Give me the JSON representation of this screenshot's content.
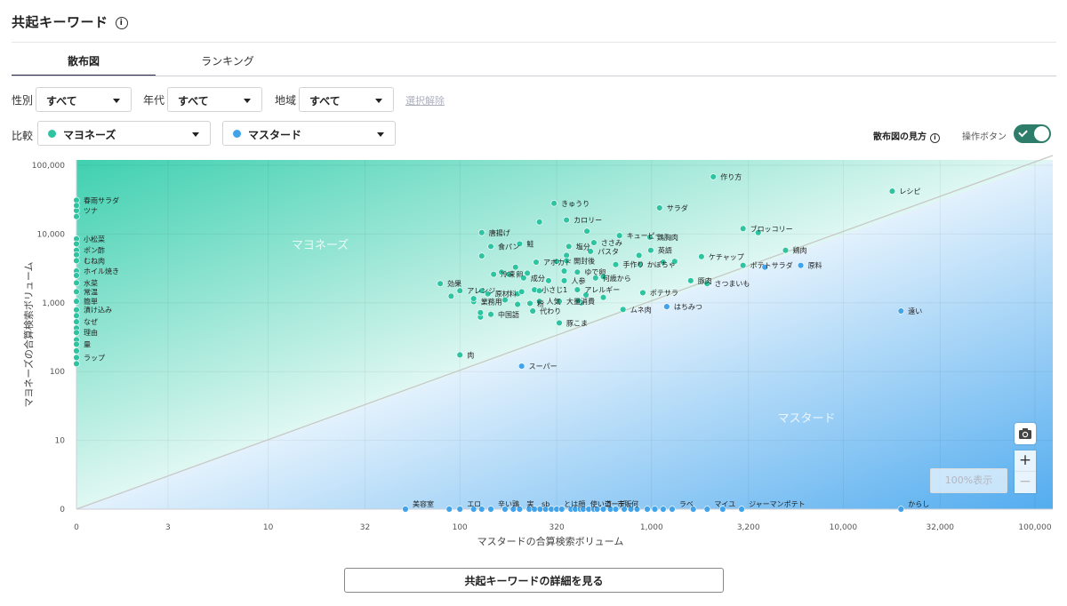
{
  "header": {
    "title": "共起キーワード",
    "info_icon": "info-icon"
  },
  "tabs": [
    {
      "label": "散布図",
      "active": true
    },
    {
      "label": "ランキング",
      "active": false
    }
  ],
  "filters": {
    "gender": {
      "label": "性別",
      "value": "すべて"
    },
    "age": {
      "label": "年代",
      "value": "すべて"
    },
    "region": {
      "label": "地域",
      "value": "すべて"
    },
    "clear": "選択解除"
  },
  "compare": {
    "label": "比較",
    "a": {
      "value": "マヨネーズ",
      "color": "#2ec4a2"
    },
    "b": {
      "value": "マスタード",
      "color": "#41a3ea"
    }
  },
  "chart_controls": {
    "howto": "散布図の見方",
    "operation": "操作ボタン",
    "toggle_on": true,
    "reset": "100%表示",
    "zoom_in": "+",
    "zoom_out": "−",
    "camera_icon": "camera-icon"
  },
  "detail_button": "共起キーワードの詳細を見る",
  "chart_data": {
    "type": "scatter",
    "xlabel": "マスタードの合算検索ボリューム",
    "ylabel": "マヨネーズの合算検索ボリューム",
    "xticks": [
      "0",
      "3",
      "10",
      "32",
      "100",
      "320",
      "1,000",
      "3,200",
      "10,000",
      "32,000",
      "100,000"
    ],
    "yticks": [
      "0",
      "10",
      "100",
      "1,000",
      "10,000",
      "100,000"
    ],
    "xlim": [
      0,
      100000
    ],
    "ylim": [
      0,
      100000
    ],
    "scale": "log",
    "region_labels": {
      "upper": "マヨネーズ",
      "lower": "マスタード"
    },
    "colors": {
      "mayo": "#2ec4a2",
      "mustard": "#41a3ea"
    },
    "points": [
      {
        "label": "作り方",
        "x": 2100,
        "y": 68000,
        "g": "mayo"
      },
      {
        "label": "レシピ",
        "x": 18000,
        "y": 42000,
        "g": "mayo"
      },
      {
        "label": "きゅうり",
        "x": 310,
        "y": 28000,
        "g": "mayo"
      },
      {
        "label": "サラダ",
        "x": 1100,
        "y": 24000,
        "g": "mayo"
      },
      {
        "label": "カロリー",
        "x": 360,
        "y": 16000,
        "g": "mayo"
      },
      {
        "label": "",
        "x": 260,
        "y": 15000,
        "g": "mayo"
      },
      {
        "label": "ブロッコリー",
        "x": 3000,
        "y": 12000,
        "g": "mayo"
      },
      {
        "label": "",
        "x": 3600,
        "y": 10500,
        "g": "mayo"
      },
      {
        "label": "唐揚げ",
        "x": 130,
        "y": 10500,
        "g": "mayo"
      },
      {
        "label": "",
        "x": 460,
        "y": 11000,
        "g": "mayo"
      },
      {
        "label": "ささみ",
        "x": 500,
        "y": 7500,
        "g": "mayo"
      },
      {
        "label": "キューピー",
        "x": 680,
        "y": 9500,
        "g": "mayo"
      },
      {
        "label": "鶏胸肉",
        "x": 980,
        "y": 9000,
        "g": "mayo"
      },
      {
        "label": "食パン",
        "x": 145,
        "y": 6600,
        "g": "mayo"
      },
      {
        "label": "鮭",
        "x": 205,
        "y": 7200,
        "g": "mayo"
      },
      {
        "label": "塩分",
        "x": 370,
        "y": 6600,
        "g": "mayo"
      },
      {
        "label": "パスタ",
        "x": 480,
        "y": 5600,
        "g": "mayo"
      },
      {
        "label": "英語",
        "x": 990,
        "y": 5800,
        "g": "mayo"
      },
      {
        "label": "鶏肉",
        "x": 5000,
        "y": 5800,
        "g": "mayo"
      },
      {
        "label": "ケチャップ",
        "x": 1820,
        "y": 4700,
        "g": "mayo"
      },
      {
        "label": "",
        "x": 130,
        "y": 4800,
        "g": "mayo"
      },
      {
        "label": "",
        "x": 360,
        "y": 4900,
        "g": "mayo"
      },
      {
        "label": "",
        "x": 860,
        "y": 4900,
        "g": "mayo"
      },
      {
        "label": "アボカド",
        "x": 250,
        "y": 3900,
        "g": "mayo"
      },
      {
        "label": "開封後",
        "x": 360,
        "y": 4100,
        "g": "mayo"
      },
      {
        "label": "",
        "x": 320,
        "y": 4000,
        "g": "mayo"
      },
      {
        "label": "手作り",
        "x": 650,
        "y": 3600,
        "g": "mayo"
      },
      {
        "label": "かぼちゃ",
        "x": 870,
        "y": 3600,
        "g": "mayo"
      },
      {
        "label": "",
        "x": 1150,
        "y": 3900,
        "g": "mayo"
      },
      {
        "label": "",
        "x": 1320,
        "y": 4000,
        "g": "mayo"
      },
      {
        "label": "ポテトサラダ",
        "x": 3000,
        "y": 3500,
        "g": "mayo"
      },
      {
        "label": "",
        "x": 3900,
        "y": 3300,
        "g": "mustard"
      },
      {
        "label": "原料",
        "x": 6000,
        "y": 3500,
        "g": "mustard"
      },
      {
        "label": "",
        "x": 195,
        "y": 3300,
        "g": "mayo"
      },
      {
        "label": "",
        "x": 165,
        "y": 2800,
        "g": "mayo"
      },
      {
        "label": "ゆで卵",
        "x": 410,
        "y": 2800,
        "g": "mayo"
      },
      {
        "label": "",
        "x": 350,
        "y": 2900,
        "g": "mayo"
      },
      {
        "label": "冷凍",
        "x": 150,
        "y": 2600,
        "g": "mayo"
      },
      {
        "label": "卵",
        "x": 180,
        "y": 2600,
        "g": "mayo"
      },
      {
        "label": "",
        "x": 225,
        "y": 2700,
        "g": "mayo"
      },
      {
        "label": "何歳から",
        "x": 510,
        "y": 2300,
        "g": "mayo"
      },
      {
        "label": "",
        "x": 560,
        "y": 2400,
        "g": "mayo"
      },
      {
        "label": "成分",
        "x": 215,
        "y": 2300,
        "g": "mayo"
      },
      {
        "label": "人参",
        "x": 350,
        "y": 2100,
        "g": "mayo"
      },
      {
        "label": "",
        "x": 290,
        "y": 2100,
        "g": "mayo"
      },
      {
        "label": "豚肉",
        "x": 1600,
        "y": 2100,
        "g": "mayo"
      },
      {
        "label": "さつまいも",
        "x": 1950,
        "y": 1900,
        "g": "mayo"
      },
      {
        "label": "効果",
        "x": 79,
        "y": 1900,
        "g": "mayo"
      },
      {
        "label": "アレンジ",
        "x": 100,
        "y": 1500,
        "g": "mayo"
      },
      {
        "label": "小さじ1",
        "x": 245,
        "y": 1550,
        "g": "mayo"
      },
      {
        "label": "原材料",
        "x": 140,
        "y": 1350,
        "g": "mayo"
      },
      {
        "label": "",
        "x": 130,
        "y": 1500,
        "g": "mayo"
      },
      {
        "label": "",
        "x": 200,
        "y": 1350,
        "g": "mayo"
      },
      {
        "label": "",
        "x": 210,
        "y": 1450,
        "g": "mayo"
      },
      {
        "label": "",
        "x": 260,
        "y": 1500,
        "g": "mayo"
      },
      {
        "label": "アレルギー",
        "x": 410,
        "y": 1550,
        "g": "mayo"
      },
      {
        "label": "",
        "x": 455,
        "y": 1300,
        "g": "mayo"
      },
      {
        "label": "",
        "x": 560,
        "y": 1200,
        "g": "mayo"
      },
      {
        "label": "ポテサラ",
        "x": 900,
        "y": 1400,
        "g": "mayo"
      },
      {
        "label": "",
        "x": 90,
        "y": 1250,
        "g": "mayo"
      },
      {
        "label": "業務用",
        "x": 118,
        "y": 1040,
        "g": "mayo"
      },
      {
        "label": "人気",
        "x": 260,
        "y": 1050,
        "g": "mayo"
      },
      {
        "label": "大量消費",
        "x": 330,
        "y": 1050,
        "g": "mayo"
      },
      {
        "label": "",
        "x": 118,
        "y": 1150,
        "g": "mayo"
      },
      {
        "label": "",
        "x": 172,
        "y": 1100,
        "g": "mayo"
      },
      {
        "label": "",
        "x": 430,
        "y": 1000,
        "g": "mayo"
      },
      {
        "label": "",
        "x": 415,
        "y": 1070,
        "g": "mayo"
      },
      {
        "label": "粉",
        "x": 232,
        "y": 980,
        "g": "mayo"
      },
      {
        "label": "",
        "x": 200,
        "y": 950,
        "g": "mayo"
      },
      {
        "label": "代わり",
        "x": 240,
        "y": 760,
        "g": "mayo"
      },
      {
        "label": "中国語",
        "x": 145,
        "y": 680,
        "g": "mayo"
      },
      {
        "label": "",
        "x": 128,
        "y": 620,
        "g": "mayo"
      },
      {
        "label": "",
        "x": 128,
        "y": 720,
        "g": "mayo"
      },
      {
        "label": "ムネ肉",
        "x": 710,
        "y": 800,
        "g": "mayo"
      },
      {
        "label": "はちみつ",
        "x": 1200,
        "y": 880,
        "g": "mustard"
      },
      {
        "label": "遠い",
        "x": 20000,
        "y": 760,
        "g": "mustard"
      },
      {
        "label": "豚こま",
        "x": 330,
        "y": 510,
        "g": "mayo"
      },
      {
        "label": "肉",
        "x": 100,
        "y": 175,
        "g": "mayo"
      },
      {
        "label": "スーパー",
        "x": 210,
        "y": 120,
        "g": "mustard"
      },
      {
        "label": "春雨サラダ",
        "x": 0,
        "y": 31000,
        "g": "mayo"
      },
      {
        "label": "ツナ",
        "x": 0,
        "y": 22000,
        "g": "mayo"
      },
      {
        "label": "",
        "x": 0,
        "y": 26000,
        "g": "mayo"
      },
      {
        "label": "",
        "x": 0,
        "y": 18000,
        "g": "mayo"
      },
      {
        "label": "小松菜",
        "x": 0,
        "y": 8500,
        "g": "mayo"
      },
      {
        "label": "",
        "x": 0,
        "y": 7200,
        "g": "mayo"
      },
      {
        "label": "ポン酢",
        "x": 0,
        "y": 5800,
        "g": "mayo"
      },
      {
        "label": "",
        "x": 0,
        "y": 5000,
        "g": "mayo"
      },
      {
        "label": "むね肉",
        "x": 0,
        "y": 4100,
        "g": "mayo"
      },
      {
        "label": "ホイル焼き",
        "x": 0,
        "y": 2900,
        "g": "mayo"
      },
      {
        "label": "",
        "x": 0,
        "y": 2500,
        "g": "mayo"
      },
      {
        "label": "水菜",
        "x": 0,
        "y": 1950,
        "g": "mayo"
      },
      {
        "label": "常温",
        "x": 0,
        "y": 1450,
        "g": "mayo"
      },
      {
        "label": "簡単",
        "x": 0,
        "y": 1050,
        "g": "mayo"
      },
      {
        "label": "漬け込み",
        "x": 0,
        "y": 790,
        "g": "mayo"
      },
      {
        "label": "",
        "x": 0,
        "y": 650,
        "g": "mayo"
      },
      {
        "label": "なぜ",
        "x": 0,
        "y": 530,
        "g": "mayo"
      },
      {
        "label": "",
        "x": 0,
        "y": 430,
        "g": "mayo"
      },
      {
        "label": "理由",
        "x": 0,
        "y": 370,
        "g": "mayo"
      },
      {
        "label": "",
        "x": 0,
        "y": 290,
        "g": "mayo"
      },
      {
        "label": "量",
        "x": 0,
        "y": 250,
        "g": "mayo"
      },
      {
        "label": "",
        "x": 0,
        "y": 200,
        "g": "mayo"
      },
      {
        "label": "ラップ",
        "x": 0,
        "y": 160,
        "g": "mayo"
      },
      {
        "label": "",
        "x": 0,
        "y": 130,
        "g": "mayo"
      },
      {
        "label": "美容室",
        "x": 52,
        "y": 0,
        "g": "mustard"
      },
      {
        "label": "エロ",
        "x": 100,
        "y": 0,
        "g": "mustard"
      },
      {
        "label": "",
        "x": 88,
        "y": 0,
        "g": "mustard"
      },
      {
        "label": "",
        "x": 118,
        "y": 0,
        "g": "mustard"
      },
      {
        "label": "辛い",
        "x": 145,
        "y": 0,
        "g": "mustard"
      },
      {
        "label": "",
        "x": 130,
        "y": 0,
        "g": "mustard"
      },
      {
        "label": "鶏",
        "x": 172,
        "y": 0,
        "g": "mustard"
      },
      {
        "label": "実",
        "x": 205,
        "y": 0,
        "g": "mustard"
      },
      {
        "label": "",
        "x": 190,
        "y": 0,
        "g": "mustard"
      },
      {
        "label": "",
        "x": 230,
        "y": 0,
        "g": "mustard"
      },
      {
        "label": "sb",
        "x": 245,
        "y": 0,
        "g": "mustard"
      },
      {
        "label": "",
        "x": 262,
        "y": 0,
        "g": "mustard"
      },
      {
        "label": "",
        "x": 280,
        "y": 0,
        "g": "mustard"
      },
      {
        "label": "",
        "x": 300,
        "y": 0,
        "g": "mustard"
      },
      {
        "label": "とは",
        "x": 320,
        "y": 0,
        "g": "mustard"
      },
      {
        "label": "",
        "x": 340,
        "y": 0,
        "g": "mustard"
      },
      {
        "label": "顔",
        "x": 380,
        "y": 0,
        "g": "mustard"
      },
      {
        "label": "",
        "x": 400,
        "y": 0,
        "g": "mustard"
      },
      {
        "label": "",
        "x": 425,
        "y": 0,
        "g": "mustard"
      },
      {
        "label": "使い道",
        "x": 440,
        "y": 0,
        "g": "mustard"
      },
      {
        "label": "",
        "x": 470,
        "y": 0,
        "g": "mustard"
      },
      {
        "label": "",
        "x": 500,
        "y": 0,
        "g": "mustard"
      },
      {
        "label": "コーデ",
        "x": 520,
        "y": 0,
        "g": "mustard"
      },
      {
        "label": "",
        "x": 560,
        "y": 0,
        "g": "mustard"
      },
      {
        "label": "市販",
        "x": 610,
        "y": 0,
        "g": "mustard"
      },
      {
        "label": "",
        "x": 650,
        "y": 0,
        "g": "mustard"
      },
      {
        "label": "何",
        "x": 720,
        "y": 0,
        "g": "mustard"
      },
      {
        "label": "",
        "x": 780,
        "y": 0,
        "g": "mustard"
      },
      {
        "label": "",
        "x": 840,
        "y": 0,
        "g": "mustard"
      },
      {
        "label": "",
        "x": 950,
        "y": 0,
        "g": "mustard"
      },
      {
        "label": "",
        "x": 1040,
        "y": 0,
        "g": "mustard"
      },
      {
        "label": "ラベ",
        "x": 1280,
        "y": 0,
        "g": "mustard"
      },
      {
        "label": "",
        "x": 1150,
        "y": 0,
        "g": "mustard"
      },
      {
        "label": "",
        "x": 1650,
        "y": 0,
        "g": "mustard"
      },
      {
        "label": "マイユ",
        "x": 1950,
        "y": 0,
        "g": "mustard"
      },
      {
        "label": "",
        "x": 2350,
        "y": 0,
        "g": "mustard"
      },
      {
        "label": "ジャーマンポテト",
        "x": 2950,
        "y": 0,
        "g": "mustard"
      },
      {
        "label": "からし",
        "x": 20000,
        "y": 0,
        "g": "mustard"
      }
    ]
  }
}
